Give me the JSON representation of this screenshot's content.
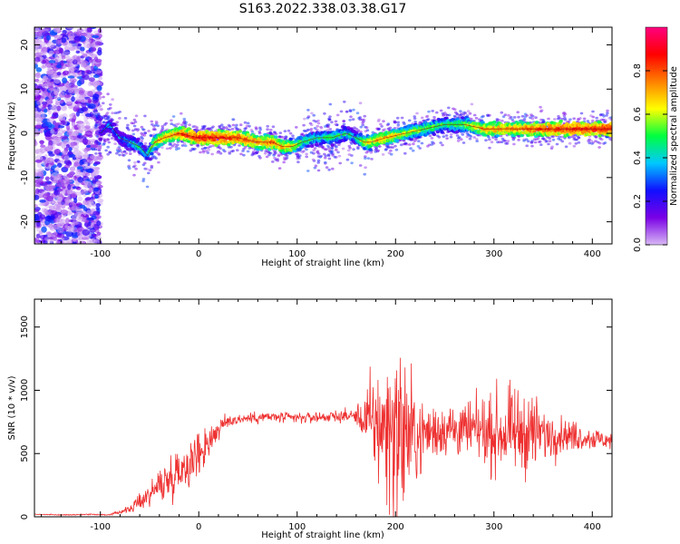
{
  "title": "S163.2022.338.03.38.G17",
  "chart_data": [
    {
      "type": "heatmap",
      "title": "S163.2022.338.03.38.G17",
      "xlabel": "Height of straight line (km)",
      "ylabel": "Frequency (Hz)",
      "xlim": [
        -167,
        420
      ],
      "ylim": [
        -25,
        24
      ],
      "xticks": [
        -100,
        0,
        100,
        200,
        300,
        400
      ],
      "yticks": [
        -20,
        -10,
        0,
        10,
        20
      ],
      "grid": false,
      "colormap": [
        "#d8b8f4",
        "#7a00e6",
        "#1010ff",
        "#00c8ff",
        "#00ff40",
        "#ffff00",
        "#ff8000",
        "#ff0000",
        "#ff0080"
      ],
      "colorbar": {
        "label": "Normalized spectral amplitude",
        "range": [
          0,
          1
        ],
        "ticks": [
          "0.0",
          "0.2",
          "0.4",
          "0.6",
          "0.8"
        ]
      },
      "trend_x": [
        -100,
        -90,
        -80,
        -70,
        -60,
        -52,
        -45,
        -35,
        -20,
        0,
        20,
        40,
        60,
        75,
        85,
        95,
        105,
        120,
        135,
        150,
        160,
        168,
        175,
        190,
        210,
        230,
        250,
        270,
        290,
        320,
        350,
        380,
        420
      ],
      "trend_y": [
        0,
        2,
        -1,
        -2,
        -3,
        -5,
        -2,
        -1,
        0,
        -1,
        -1,
        -1,
        -2,
        -2,
        -3,
        -3,
        -2,
        -1,
        -1,
        0,
        -1,
        -2,
        -2,
        -1,
        0,
        1,
        2,
        2,
        1,
        1,
        1,
        1,
        1
      ],
      "trend_amp": [
        0.3,
        0.45,
        0.4,
        0.5,
        0.55,
        0.5,
        0.7,
        0.8,
        0.85,
        0.95,
        0.95,
        0.9,
        0.85,
        0.85,
        0.8,
        0.75,
        0.6,
        0.55,
        0.6,
        0.55,
        0.5,
        0.7,
        0.75,
        0.8,
        0.7,
        0.65,
        0.6,
        0.65,
        0.8,
        0.85,
        0.9,
        0.95,
        0.95
      ]
    },
    {
      "type": "line",
      "xlabel": "Height of straight line (km)",
      "ylabel": "SNR (10 * v/v)",
      "xlim": [
        -167,
        420
      ],
      "ylim": [
        0,
        1720
      ],
      "xticks": [
        -100,
        0,
        100,
        200,
        300,
        400
      ],
      "yticks": [
        0,
        500,
        1000,
        1500
      ],
      "grid": false,
      "color": "#ee3030",
      "x": [
        -167,
        -140,
        -110,
        -90,
        -80,
        -70,
        -60,
        -50,
        -40,
        -30,
        -20,
        -10,
        0,
        10,
        20,
        30,
        50,
        70,
        100,
        130,
        160,
        170,
        180,
        190,
        200,
        210,
        220,
        230,
        250,
        270,
        290,
        300,
        320,
        340,
        350,
        370,
        400,
        420
      ],
      "y": [
        20,
        15,
        20,
        15,
        40,
        60,
        120,
        180,
        250,
        300,
        380,
        420,
        500,
        600,
        690,
        760,
        780,
        790,
        780,
        790,
        800,
        760,
        730,
        700,
        680,
        660,
        620,
        660,
        700,
        680,
        680,
        660,
        670,
        670,
        650,
        650,
        620,
        600
      ],
      "noise": [
        3,
        3,
        4,
        4,
        15,
        25,
        60,
        90,
        120,
        150,
        160,
        170,
        180,
        140,
        80,
        50,
        40,
        40,
        40,
        40,
        50,
        250,
        400,
        550,
        600,
        600,
        350,
        200,
        200,
        200,
        220,
        280,
        300,
        280,
        200,
        120,
        80,
        60
      ]
    }
  ]
}
